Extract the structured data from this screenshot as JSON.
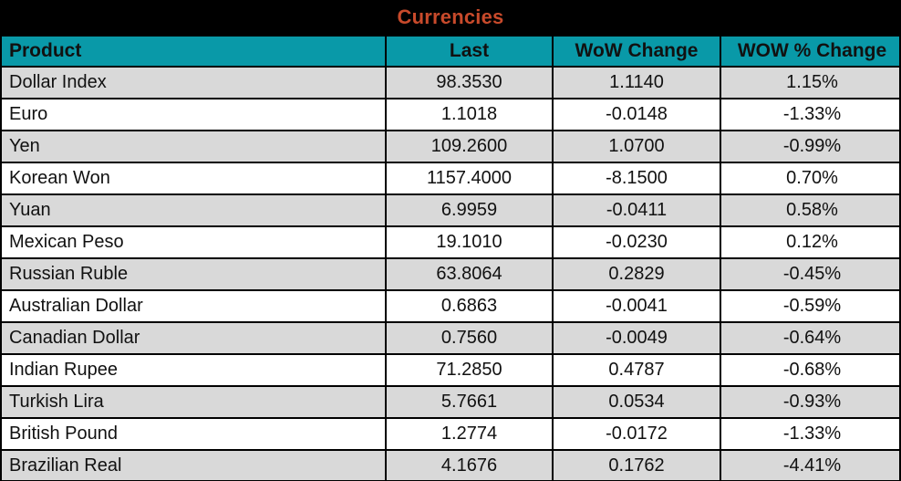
{
  "colors": {
    "title_bg": "#000000",
    "title_text": "#C84A2B",
    "header_bg": "#0999A8",
    "row_alt": "#D9D9D9",
    "row_base": "#FFFFFF",
    "border": "#000000"
  },
  "chart_data": {
    "type": "table",
    "title": "Currencies",
    "columns": [
      "Product",
      "Last",
      "WoW Change",
      "WOW % Change"
    ],
    "rows": [
      [
        "Dollar Index",
        "98.3530",
        "1.1140",
        "1.15%"
      ],
      [
        "Euro",
        "1.1018",
        "-0.0148",
        "-1.33%"
      ],
      [
        "Yen",
        "109.2600",
        "1.0700",
        "-0.99%"
      ],
      [
        "Korean Won",
        "1157.4000",
        "-8.1500",
        "0.70%"
      ],
      [
        "Yuan",
        "6.9959",
        "-0.0411",
        "0.58%"
      ],
      [
        "Mexican Peso",
        "19.1010",
        "-0.0230",
        "0.12%"
      ],
      [
        "Russian Ruble",
        "63.8064",
        "0.2829",
        "-0.45%"
      ],
      [
        "Australian Dollar",
        "0.6863",
        "-0.0041",
        "-0.59%"
      ],
      [
        "Canadian Dollar",
        "0.7560",
        "-0.0049",
        "-0.64%"
      ],
      [
        "Indian Rupee",
        "71.2850",
        "0.4787",
        "-0.68%"
      ],
      [
        "Turkish Lira",
        "5.7661",
        "0.0534",
        "-0.93%"
      ],
      [
        "British Pound",
        "1.2774",
        "-0.0172",
        "-1.33%"
      ],
      [
        "Brazilian Real",
        "4.1676",
        "0.1762",
        "-4.41%"
      ]
    ]
  }
}
